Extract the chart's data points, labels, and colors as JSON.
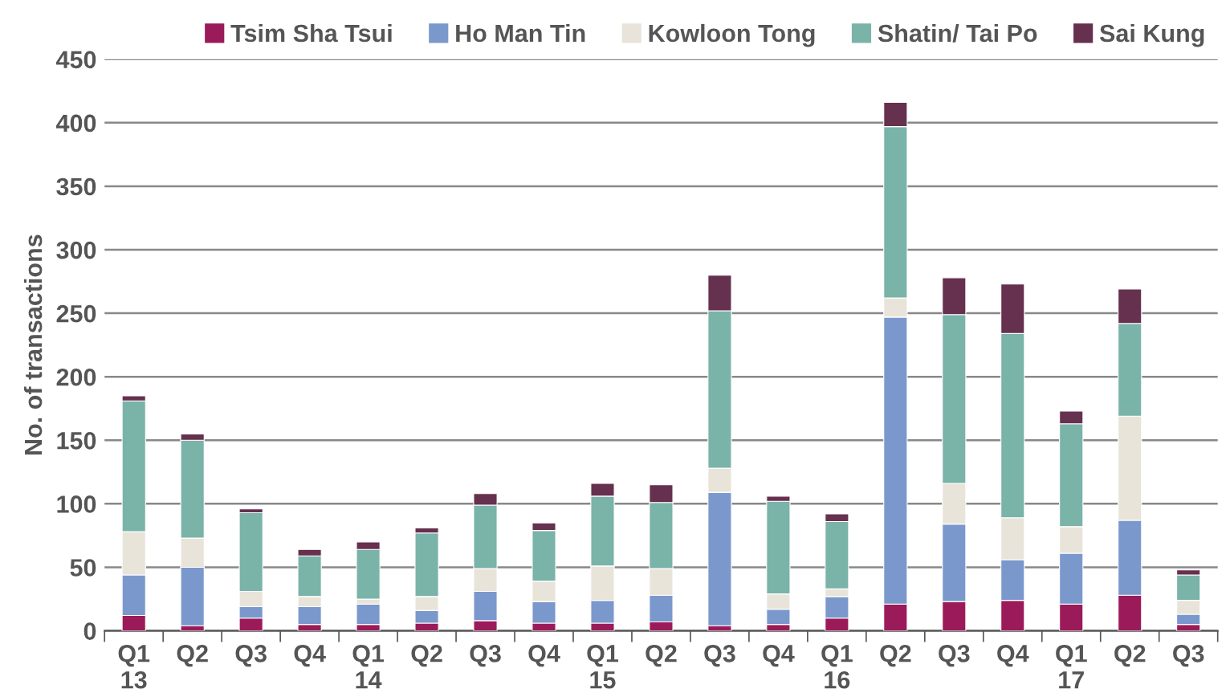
{
  "chart_data": {
    "type": "bar",
    "stacked": true,
    "ylabel": "No. of transactions",
    "categories": [
      "Q1\n13",
      "Q2",
      "Q3",
      "Q4",
      "Q1\n14",
      "Q2",
      "Q3",
      "Q4",
      "Q1\n15",
      "Q2",
      "Q3",
      "Q4",
      "Q1\n16",
      "Q2",
      "Q3",
      "Q4",
      "Q1\n17",
      "Q2",
      "Q3"
    ],
    "series": [
      {
        "name": "Tsim Sha Tsui",
        "color": "#9b1b5a",
        "values": [
          12,
          4,
          10,
          5,
          5,
          6,
          8,
          6,
          6,
          7,
          4,
          5,
          10,
          21,
          23,
          24,
          21,
          28,
          5
        ]
      },
      {
        "name": "Ho Man Tin",
        "color": "#7b98cc",
        "values": [
          32,
          46,
          9,
          14,
          16,
          10,
          23,
          17,
          18,
          21,
          105,
          12,
          17,
          226,
          61,
          32,
          40,
          59,
          8
        ]
      },
      {
        "name": "Kowloon Tong",
        "color": "#e8e4da",
        "values": [
          34,
          23,
          12,
          8,
          4,
          11,
          18,
          16,
          27,
          21,
          19,
          12,
          6,
          15,
          32,
          33,
          21,
          82,
          11
        ]
      },
      {
        "name": "Shatin/ Tai Po",
        "color": "#7ab3a8",
        "values": [
          103,
          77,
          62,
          32,
          39,
          50,
          50,
          40,
          55,
          52,
          124,
          73,
          53,
          135,
          133,
          145,
          81,
          73,
          20
        ]
      },
      {
        "name": "Sai Kung",
        "color": "#66304f",
        "values": [
          4,
          5,
          3,
          5,
          6,
          4,
          9,
          6,
          10,
          14,
          28,
          4,
          6,
          19,
          29,
          39,
          10,
          27,
          4
        ]
      }
    ],
    "ylim": [
      0,
      450
    ],
    "yticks": [
      0,
      50,
      100,
      150,
      200,
      250,
      300,
      350,
      400,
      450
    ],
    "grid": "y",
    "legend": "top right"
  }
}
